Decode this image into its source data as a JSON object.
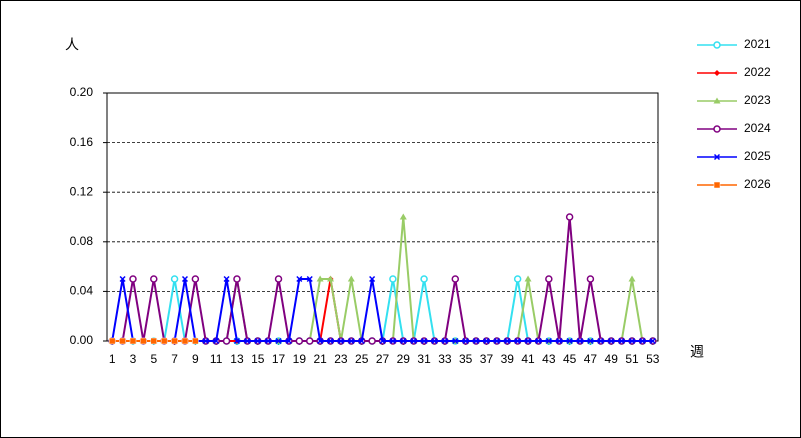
{
  "chart_data": {
    "type": "line",
    "y_label": "人",
    "x_label": "週",
    "x": [
      1,
      2,
      3,
      4,
      5,
      6,
      7,
      8,
      9,
      10,
      11,
      12,
      13,
      14,
      15,
      16,
      17,
      18,
      19,
      20,
      21,
      22,
      23,
      24,
      25,
      26,
      27,
      28,
      29,
      30,
      31,
      32,
      33,
      34,
      35,
      36,
      37,
      38,
      39,
      40,
      41,
      42,
      43,
      44,
      45,
      46,
      47,
      48,
      49,
      50,
      51,
      52,
      53
    ],
    "xlim": [
      0.5,
      53.5
    ],
    "xticks": [
      1,
      3,
      5,
      7,
      9,
      11,
      13,
      15,
      17,
      19,
      21,
      23,
      25,
      27,
      29,
      31,
      33,
      35,
      37,
      39,
      41,
      43,
      45,
      47,
      49,
      51,
      53
    ],
    "ylim": [
      0,
      0.2
    ],
    "yticks": [
      {
        "value": 0,
        "label": "0.00"
      },
      {
        "value": 0.04,
        "label": "0.04"
      },
      {
        "value": 0.08,
        "label": "0.08"
      },
      {
        "value": 0.12,
        "label": "0.12"
      },
      {
        "value": 0.16,
        "label": "0.16"
      },
      {
        "value": 0.2,
        "label": "0.20"
      }
    ],
    "grid": true,
    "legend": "right",
    "series": [
      {
        "name": "2021",
        "color": "#33e0f0",
        "marker": "circle-open",
        "values": [
          0,
          0,
          0,
          0,
          0,
          0,
          0.05,
          0,
          0,
          0,
          0,
          0,
          0,
          0,
          0,
          0,
          0,
          0,
          0,
          0,
          0,
          0,
          0,
          0,
          0,
          0,
          0,
          0.05,
          0,
          0,
          0.05,
          0,
          0,
          0,
          0,
          0,
          0,
          0,
          0,
          0.05,
          0,
          0,
          0,
          0,
          0,
          0,
          0,
          0,
          0,
          0,
          0,
          0,
          0
        ]
      },
      {
        "name": "2022",
        "color": "#ff0000",
        "marker": "diamond",
        "values": [
          0,
          0,
          0,
          0,
          0,
          0,
          0,
          0,
          0,
          0,
          0,
          0,
          0,
          0,
          0,
          0,
          0,
          0,
          0,
          0,
          0,
          0.05,
          0,
          0,
          0,
          0,
          0,
          0,
          0,
          0,
          0,
          0,
          0,
          0,
          0,
          0,
          0,
          0,
          0,
          0,
          0,
          0,
          0,
          0,
          0,
          0,
          0,
          0,
          0,
          0,
          0,
          0,
          0
        ]
      },
      {
        "name": "2023",
        "color": "#99cc66",
        "marker": "triangle",
        "values": [
          0,
          0,
          0,
          0,
          0,
          0,
          0,
          0,
          0,
          0,
          0,
          0,
          0.05,
          0,
          0,
          0,
          0,
          0,
          0,
          0,
          0.05,
          0.05,
          0,
          0.05,
          0,
          0,
          0,
          0,
          0.1,
          0,
          0,
          0,
          0,
          0,
          0,
          0,
          0,
          0,
          0,
          0,
          0.05,
          0,
          0,
          0,
          0,
          0,
          0,
          0,
          0,
          0,
          0.05,
          0,
          0
        ]
      },
      {
        "name": "2024",
        "color": "#800080",
        "marker": "circle-open",
        "values": [
          0,
          0,
          0.05,
          0,
          0.05,
          0,
          0,
          0,
          0.05,
          0,
          0,
          0,
          0.05,
          0,
          0,
          0,
          0.05,
          0,
          0,
          0,
          0,
          0,
          0,
          0,
          0,
          0,
          0,
          0,
          0,
          0,
          0,
          0,
          0,
          0.05,
          0,
          0,
          0,
          0,
          0,
          0,
          0,
          0,
          0.05,
          0,
          0.1,
          0,
          0.05,
          0,
          0,
          0,
          0,
          0,
          0
        ]
      },
      {
        "name": "2025",
        "color": "#0000ff",
        "marker": "x",
        "values": [
          0,
          0.05,
          0,
          0,
          0,
          0,
          0,
          0.05,
          0,
          0,
          0,
          0.05,
          0,
          0,
          0,
          0,
          0,
          0,
          0.05,
          0.05,
          0,
          0,
          0,
          0,
          0,
          0.05,
          0,
          0,
          0,
          0,
          0,
          0,
          0,
          0,
          0,
          0,
          0,
          0,
          0,
          0,
          0,
          0,
          0,
          0,
          0,
          0,
          0,
          0,
          0,
          0,
          0,
          0,
          0
        ]
      },
      {
        "name": "2026",
        "color": "#ff6600",
        "marker": "square",
        "values": [
          0,
          0,
          0,
          0,
          0,
          0,
          0,
          0,
          0,
          null,
          null,
          null,
          null,
          null,
          null,
          null,
          null,
          null,
          null,
          null,
          null,
          null,
          null,
          null,
          null,
          null,
          null,
          null,
          null,
          null,
          null,
          null,
          null,
          null,
          null,
          null,
          null,
          null,
          null,
          null,
          null,
          null,
          null,
          null,
          null,
          null,
          null,
          null,
          null,
          null,
          null,
          null,
          null
        ]
      }
    ]
  }
}
